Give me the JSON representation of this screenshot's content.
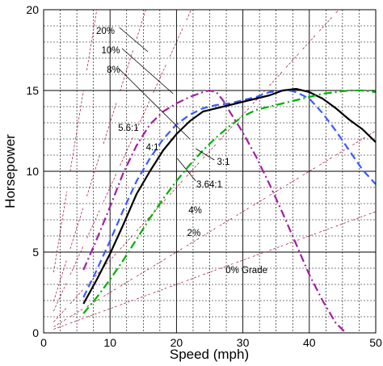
{
  "chart_data": {
    "type": "line",
    "xlabel": "Speed (mph)",
    "ylabel": "Horsepower",
    "xlim": [
      0,
      50
    ],
    "ylim": [
      0,
      20
    ],
    "x_ticks": [
      0,
      10,
      20,
      30,
      40,
      50
    ],
    "y_ticks": [
      0,
      5,
      10,
      15,
      20
    ],
    "grid": true,
    "series": [
      {
        "name": "5.6:1",
        "color": "#a020a0",
        "style": "dash-dot",
        "x": [
          6,
          8,
          10,
          12,
          14,
          16,
          18,
          20,
          22,
          24,
          25,
          26,
          27,
          28,
          30,
          32,
          34,
          36,
          38,
          40,
          42,
          44,
          46,
          48
        ],
        "y": [
          3.9,
          5.8,
          7.8,
          9.9,
          11.6,
          12.9,
          13.7,
          14.2,
          14.6,
          14.9,
          15.0,
          14.9,
          14.4,
          13.7,
          12.4,
          10.9,
          9.2,
          7.4,
          5.5,
          3.6,
          2.0,
          0.6,
          -0.2,
          -0.5
        ]
      },
      {
        "name": "4:1",
        "color": "#3a5bff",
        "style": "dash",
        "x": [
          6,
          8,
          10,
          12,
          14,
          16,
          18,
          20,
          22,
          24,
          26,
          28,
          30,
          32,
          34,
          36,
          37,
          38,
          40,
          42,
          44,
          46,
          48,
          50
        ],
        "y": [
          2.2,
          3.9,
          5.7,
          7.6,
          9.4,
          10.8,
          12.0,
          12.9,
          13.5,
          13.9,
          14.1,
          14.2,
          14.4,
          14.6,
          14.9,
          15.0,
          15.0,
          14.9,
          14.5,
          13.6,
          12.5,
          11.3,
          10.1,
          9.2
        ]
      },
      {
        "name": "3.64:1",
        "color": "#000000",
        "style": "solid",
        "x": [
          6,
          8,
          10,
          12,
          14,
          16,
          18,
          20,
          22,
          24,
          26,
          28,
          30,
          32,
          34,
          36,
          38,
          40,
          42,
          44,
          46,
          48,
          50
        ],
        "y": [
          1.8,
          3.3,
          4.9,
          6.7,
          8.6,
          10.0,
          11.3,
          12.3,
          13.1,
          13.7,
          13.9,
          14.1,
          14.3,
          14.5,
          14.7,
          15.0,
          15.1,
          14.9,
          14.5,
          13.9,
          13.2,
          12.6,
          11.8
        ]
      },
      {
        "name": "3:1",
        "color": "#00b000",
        "style": "dash-dot",
        "x": [
          6,
          8,
          10,
          12,
          14,
          16,
          18,
          20,
          22,
          24,
          26,
          28,
          30,
          32,
          34,
          36,
          38,
          40,
          42,
          44,
          46,
          48,
          50
        ],
        "y": [
          1.2,
          2.2,
          3.3,
          4.5,
          5.8,
          7.1,
          8.3,
          9.4,
          10.4,
          11.3,
          12.1,
          12.8,
          13.4,
          13.8,
          14.0,
          14.2,
          14.4,
          14.6,
          14.8,
          14.9,
          15.0,
          15.0,
          14.9
        ]
      }
    ],
    "grade_lines": {
      "color": "#a01030",
      "style": "dash",
      "grades": [
        {
          "label": "0% Grade",
          "slope": 0.15
        },
        {
          "label": "2%",
          "slope": 0.25
        },
        {
          "label": "4%",
          "slope": 0.45
        },
        {
          "label": "8%",
          "slope": 0.9
        },
        {
          "label": "10%",
          "slope": 1.3
        },
        {
          "label": "20%",
          "slope": 2.5
        }
      ],
      "spacing_x": 2.5
    },
    "annotations": [
      {
        "text": "20%",
        "x": 7.9,
        "y": 18.5
      },
      {
        "text": "10%",
        "x": 8.7,
        "y": 17.3
      },
      {
        "text": "8%",
        "x": 9.5,
        "y": 16.1
      },
      {
        "text": "5.6:1",
        "x": 11.2,
        "y": 12.5
      },
      {
        "text": "4:1",
        "x": 15.4,
        "y": 11.3
      },
      {
        "text": "3:1",
        "x": 26.1,
        "y": 10.4
      },
      {
        "text": "3.64:1",
        "x": 23.0,
        "y": 9.0
      },
      {
        "text": "4%",
        "x": 21.8,
        "y": 7.4
      },
      {
        "text": "2%",
        "x": 21.6,
        "y": 6.0
      },
      {
        "text": "0% Grade",
        "x": 27.4,
        "y": 3.7
      }
    ],
    "leaders": [
      {
        "from": [
          11.4,
          18.9
        ],
        "to": [
          15.7,
          17.4
        ]
      },
      {
        "from": [
          11.8,
          17.6
        ],
        "to": [
          19.5,
          14.8
        ]
      },
      {
        "from": [
          11.2,
          16.4
        ],
        "to": [
          22.0,
          12.0
        ]
      },
      {
        "from": [
          22.9,
          11.4
        ],
        "to": [
          25.7,
          10.7
        ]
      },
      {
        "from": [
          20.1,
          10.8
        ],
        "to": [
          22.9,
          9.4
        ]
      }
    ]
  }
}
